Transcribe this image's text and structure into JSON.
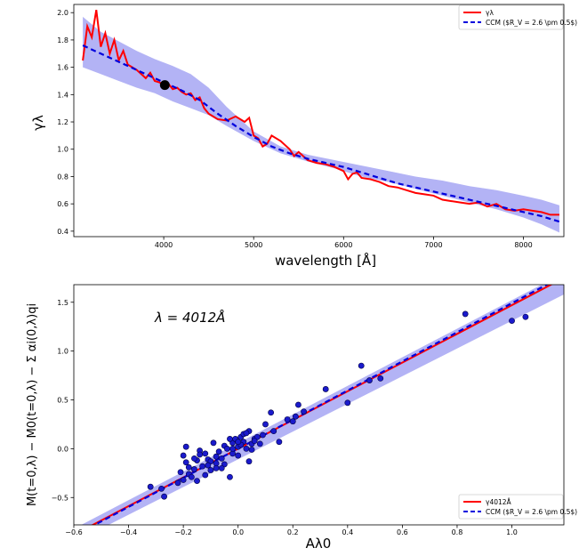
{
  "chart_data": [
    {
      "type": "line",
      "xlabel": "wavelength [Å]",
      "ylabel": "γλ",
      "xlim": [
        3000,
        8450
      ],
      "ylim": [
        0.36,
        2.06
      ],
      "xticks": [
        4000,
        5000,
        6000,
        7000,
        8000
      ],
      "xtick_labels": [
        "4000",
        "5000",
        "6000",
        "7000",
        "8000"
      ],
      "yticks": [
        0.4,
        0.6,
        0.8,
        1.0,
        1.2,
        1.4,
        1.6,
        1.8,
        2.0
      ],
      "ytick_labels": [
        "0.4",
        "0.6",
        "0.8",
        "1.0",
        "1.2",
        "1.4",
        "1.6",
        "1.8",
        "2.0"
      ],
      "grid": false,
      "legend_position": "top-right",
      "series": [
        {
          "name": "γλ",
          "style": "solid",
          "color": "#ff0000",
          "x": [
            3100,
            3150,
            3200,
            3250,
            3300,
            3350,
            3400,
            3450,
            3500,
            3550,
            3600,
            3650,
            3700,
            3750,
            3800,
            3850,
            3900,
            3950,
            4000,
            4050,
            4100,
            4150,
            4200,
            4250,
            4300,
            4350,
            4400,
            4450,
            4500,
            4600,
            4700,
            4800,
            4900,
            4950,
            5000,
            5050,
            5100,
            5150,
            5200,
            5300,
            5400,
            5450,
            5500,
            5600,
            5700,
            5800,
            5900,
            6000,
            6050,
            6100,
            6150,
            6200,
            6300,
            6400,
            6500,
            6600,
            6700,
            6800,
            6900,
            7000,
            7100,
            7200,
            7300,
            7400,
            7500,
            7600,
            7700,
            7800,
            7900,
            8000,
            8100,
            8200,
            8300,
            8400
          ],
          "y": [
            1.65,
            1.9,
            1.82,
            2.02,
            1.75,
            1.85,
            1.7,
            1.8,
            1.65,
            1.72,
            1.62,
            1.6,
            1.58,
            1.55,
            1.52,
            1.56,
            1.5,
            1.49,
            1.47,
            1.48,
            1.44,
            1.45,
            1.42,
            1.4,
            1.41,
            1.36,
            1.38,
            1.3,
            1.26,
            1.22,
            1.21,
            1.24,
            1.2,
            1.23,
            1.1,
            1.08,
            1.02,
            1.04,
            1.1,
            1.06,
            1.0,
            0.95,
            0.98,
            0.92,
            0.9,
            0.89,
            0.87,
            0.84,
            0.78,
            0.82,
            0.83,
            0.79,
            0.78,
            0.76,
            0.73,
            0.72,
            0.7,
            0.68,
            0.67,
            0.66,
            0.63,
            0.62,
            0.61,
            0.6,
            0.61,
            0.58,
            0.6,
            0.56,
            0.55,
            0.56,
            0.55,
            0.54,
            0.52,
            0.52
          ]
        },
        {
          "name": "CCM ($R_V = 2.6 \\pm 0.5$)",
          "style": "dashed",
          "color": "#0000dd",
          "x": [
            3100,
            3300,
            3500,
            3700,
            3900,
            4000,
            4200,
            4400,
            4600,
            4800,
            5000,
            5200,
            5400,
            5600,
            5800,
            6000,
            6200,
            6400,
            6600,
            6800,
            7000,
            7200,
            7400,
            7600,
            7800,
            8000,
            8200,
            8400
          ],
          "y": [
            1.76,
            1.7,
            1.64,
            1.58,
            1.52,
            1.49,
            1.43,
            1.36,
            1.26,
            1.17,
            1.09,
            1.02,
            0.97,
            0.93,
            0.9,
            0.87,
            0.83,
            0.79,
            0.75,
            0.72,
            0.69,
            0.66,
            0.63,
            0.6,
            0.57,
            0.54,
            0.51,
            0.47
          ]
        }
      ],
      "band": {
        "color": "#8b8bf0",
        "x": [
          3100,
          3300,
          3500,
          3700,
          3900,
          4100,
          4300,
          4500,
          4700,
          5000,
          5300,
          5600,
          5900,
          6200,
          6500,
          6800,
          7100,
          7400,
          7700,
          8000,
          8200,
          8400
        ],
        "upper": [
          1.97,
          1.86,
          1.79,
          1.72,
          1.66,
          1.61,
          1.55,
          1.45,
          1.31,
          1.13,
          1.02,
          0.96,
          0.92,
          0.88,
          0.84,
          0.8,
          0.77,
          0.73,
          0.7,
          0.66,
          0.63,
          0.59
        ],
        "lower": [
          1.6,
          1.55,
          1.5,
          1.45,
          1.41,
          1.35,
          1.3,
          1.25,
          1.17,
          1.06,
          0.97,
          0.91,
          0.86,
          0.8,
          0.76,
          0.71,
          0.66,
          0.61,
          0.56,
          0.5,
          0.45,
          0.39
        ]
      },
      "marker": {
        "x": 4012,
        "y": 1.47,
        "color": "#000000"
      }
    },
    {
      "type": "scatter",
      "xlabel": "Aλ0",
      "ylabel": "M(t=0,λ) − M0(t=0,λ) − Σ αi(0,λ)qi",
      "annotation": "λ = 4012Å",
      "xlim": [
        -0.6,
        1.19
      ],
      "ylim": [
        -0.78,
        1.68
      ],
      "xticks": [
        -0.6,
        -0.4,
        -0.2,
        0.0,
        0.2,
        0.4,
        0.6,
        0.8,
        1.0
      ],
      "xtick_labels": [
        "−0.6",
        "−0.4",
        "−0.2",
        "0.0",
        "0.2",
        "0.4",
        "0.6",
        "0.8",
        "1.0"
      ],
      "yticks": [
        -0.5,
        0.0,
        0.5,
        1.0,
        1.5
      ],
      "ytick_labels": [
        "−0.5",
        "0.0",
        "0.5",
        "1.0",
        "1.5"
      ],
      "grid": false,
      "legend_position": "bottom-right",
      "fit_line": {
        "name": "γ4012Å",
        "color": "#ff0000",
        "slope": 1.47,
        "intercept": 0.0
      },
      "ccm_line": {
        "name": "CCM ($R_V = 2.6 \\pm 0.5$)",
        "color": "#0000dd",
        "slope": 1.49,
        "intercept": 0.0
      },
      "band": {
        "color": "#8b8bf0",
        "x": [
          -0.6,
          1.19
        ],
        "upper": [
          -0.82,
          1.8
        ],
        "lower": [
          -0.96,
          1.58
        ]
      },
      "points": {
        "color": "#1a1acc",
        "x": [
          -0.32,
          -0.28,
          -0.27,
          -0.22,
          -0.21,
          -0.2,
          -0.2,
          -0.19,
          -0.18,
          -0.18,
          -0.17,
          -0.16,
          -0.15,
          -0.15,
          -0.14,
          -0.13,
          -0.12,
          -0.12,
          -0.11,
          -0.1,
          -0.1,
          -0.09,
          -0.08,
          -0.08,
          -0.07,
          -0.06,
          -0.05,
          -0.05,
          -0.04,
          -0.03,
          -0.02,
          -0.02,
          -0.01,
          0.0,
          0.0,
          0.01,
          0.02,
          0.02,
          0.03,
          0.04,
          0.05,
          0.06,
          0.07,
          0.08,
          0.1,
          0.12,
          0.13,
          0.15,
          0.18,
          0.2,
          0.21,
          0.22,
          0.24,
          0.32,
          0.4,
          0.45,
          0.48,
          0.52,
          0.83,
          1.0,
          1.05,
          -0.19,
          -0.14,
          -0.11,
          -0.06,
          -0.03,
          0.01,
          0.04,
          0.06,
          -0.16,
          -0.02,
          0.03,
          0.09,
          -0.08,
          0.0,
          0.05
        ],
        "y": [
          -0.39,
          -0.41,
          -0.49,
          -0.35,
          -0.24,
          -0.07,
          -0.32,
          -0.14,
          -0.26,
          -0.19,
          -0.29,
          -0.21,
          -0.12,
          -0.33,
          -0.02,
          -0.18,
          -0.27,
          -0.05,
          -0.11,
          -0.22,
          -0.13,
          0.06,
          -0.08,
          -0.15,
          -0.03,
          -0.1,
          0.03,
          -0.16,
          0.0,
          -0.29,
          -0.05,
          0.06,
          0.1,
          0.02,
          -0.07,
          0.12,
          0.07,
          0.15,
          0.0,
          0.18,
          0.05,
          0.1,
          0.12,
          0.05,
          0.25,
          0.37,
          0.18,
          0.07,
          0.3,
          0.28,
          0.33,
          0.45,
          0.38,
          0.61,
          0.47,
          0.85,
          0.7,
          0.72,
          1.38,
          1.31,
          1.35,
          0.02,
          -0.06,
          -0.17,
          -0.2,
          0.1,
          0.04,
          -0.13,
          0.08,
          -0.1,
          0.0,
          0.16,
          0.14,
          -0.2,
          0.07,
          -0.01
        ]
      }
    }
  ]
}
